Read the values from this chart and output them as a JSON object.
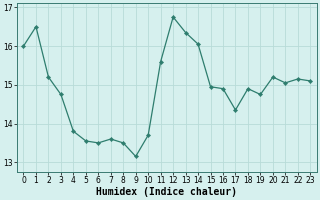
{
  "x": [
    0,
    1,
    2,
    3,
    4,
    5,
    6,
    7,
    8,
    9,
    10,
    11,
    12,
    13,
    14,
    15,
    16,
    17,
    18,
    19,
    20,
    21,
    22,
    23
  ],
  "y": [
    16.0,
    16.5,
    15.2,
    14.75,
    13.8,
    13.55,
    13.5,
    13.6,
    13.5,
    13.15,
    13.7,
    15.6,
    16.75,
    16.35,
    16.05,
    14.95,
    14.9,
    14.35,
    14.9,
    14.75,
    15.2,
    15.05,
    15.15,
    15.1
  ],
  "line_color": "#2e7d6e",
  "marker": "D",
  "marker_size": 2.2,
  "bg_color": "#d6f0ee",
  "grid_color": "#b8dbd8",
  "xlabel": "Humidex (Indice chaleur)",
  "ylim": [
    12.75,
    17.1
  ],
  "yticks": [
    13,
    14,
    15,
    16,
    17
  ],
  "xticks": [
    0,
    1,
    2,
    3,
    4,
    5,
    6,
    7,
    8,
    9,
    10,
    11,
    12,
    13,
    14,
    15,
    16,
    17,
    18,
    19,
    20,
    21,
    22,
    23
  ],
  "tick_fontsize": 5.5,
  "xlabel_fontsize": 7.0,
  "xlabel_fontweight": "bold",
  "spine_color": "#3a7a72"
}
